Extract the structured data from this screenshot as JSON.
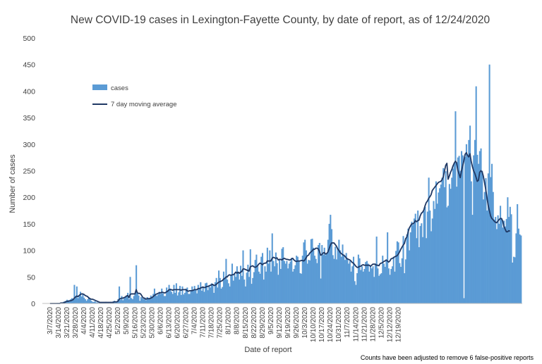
{
  "chart_data": {
    "type": "bar",
    "title": "New COVID-19 cases in Lexington-Fayette County, by date of report, as of 12/24/2020",
    "xlabel": "Date of report",
    "ylabel": "Number of cases",
    "ylim": [
      0,
      500
    ],
    "y_ticks": [
      0,
      50,
      100,
      150,
      200,
      250,
      300,
      350,
      400,
      450,
      500
    ],
    "x_tick_labels": [
      "3/7/2020",
      "3/14/2020",
      "3/21/2020",
      "3/28/2020",
      "4/4/2020",
      "4/11/2020",
      "4/18/2020",
      "4/25/2020",
      "5/2/2020",
      "5/9/2020",
      "5/16/2020",
      "5/23/2020",
      "5/30/2020",
      "6/6/2020",
      "6/13/2020",
      "6/20/2020",
      "6/27/2020",
      "7/4/2020",
      "7/11/2020",
      "7/18/2020",
      "7/25/2020",
      "8/1/2020",
      "8/8/2020",
      "8/15/2020",
      "8/22/2020",
      "8/29/2020",
      "9/5/2020",
      "9/12/2020",
      "9/19/2020",
      "9/26/2020",
      "10/3/2020",
      "10/10/2020",
      "10/17/2020",
      "10/24/2020",
      "10/31/2020",
      "11/7/2020",
      "11/14/2020",
      "11/21/2020",
      "11/28/2020",
      "12/5/2020",
      "12/12/2020",
      "12/19/2020"
    ],
    "first_date": "3/7/2020",
    "grid": false,
    "legend_position": "upper-left",
    "series": [
      {
        "name": "cases",
        "kind": "bar",
        "color": "#5b9bd5",
        "values": [
          0,
          0,
          0,
          0,
          0,
          0,
          1,
          1,
          1,
          2,
          2,
          3,
          4,
          5,
          7,
          6,
          5,
          8,
          10,
          9,
          35,
          14,
          32,
          10,
          14,
          22,
          13,
          17,
          11,
          8,
          5,
          8,
          12,
          9,
          5,
          3,
          3,
          4,
          2,
          2,
          1,
          1,
          2,
          2,
          2,
          2,
          3,
          1,
          2,
          1,
          3,
          1,
          4,
          5,
          3,
          2,
          8,
          32,
          7,
          14,
          6,
          10,
          12,
          15,
          20,
          8,
          50,
          10,
          8,
          14,
          18,
          72,
          20,
          15,
          5,
          12,
          10,
          8,
          10,
          6,
          12,
          10,
          9,
          15,
          13,
          18,
          28,
          18,
          14,
          17,
          22,
          18,
          28,
          19,
          14,
          14,
          30,
          25,
          35,
          28,
          22,
          18,
          35,
          20,
          38,
          15,
          21,
          33,
          16,
          32,
          17,
          20,
          28,
          30,
          18,
          18,
          24,
          32,
          25,
          33,
          26,
          19,
          35,
          28,
          40,
          24,
          30,
          22,
          38,
          39,
          25,
          34,
          30,
          38,
          35,
          20,
          40,
          48,
          30,
          62,
          48,
          28,
          31,
          60,
          46,
          84,
          45,
          38,
          32,
          52,
          75,
          43,
          56,
          50,
          70,
          58,
          45,
          71,
          52,
          100,
          45,
          32,
          58,
          73,
          50,
          102,
          37,
          48,
          59,
          82,
          92,
          70,
          60,
          56,
          88,
          95,
          45,
          70,
          60,
          105,
          75,
          100,
          60,
          132,
          80,
          70,
          96,
          76,
          54,
          84,
          65,
          103,
          106,
          80,
          75,
          80,
          66,
          75,
          79,
          86,
          60,
          65,
          72,
          90,
          88,
          80,
          57,
          56,
          90,
          115,
          120,
          100,
          75,
          82,
          81,
          121,
          122,
          105,
          90,
          84,
          76,
          110,
          114,
          47,
          110,
          92,
          105,
          91,
          95,
          120,
          150,
          167,
          140,
          91,
          84,
          107,
          83,
          103,
          120,
          100,
          88,
          111,
          92,
          82,
          95,
          85,
          75,
          80,
          60,
          70,
          88,
          42,
          35,
          57,
          92,
          85,
          63,
          70,
          60,
          65,
          78,
          80,
          75,
          60,
          72,
          66,
          70,
          50,
          75,
          126,
          66,
          52,
          55,
          57,
          90,
          75,
          69,
          80,
          134,
          66,
          54,
          65,
          70,
          88,
          60,
          99,
          117,
          115,
          76,
          69,
          85,
          127,
          57,
          83,
          130,
          141,
          100,
          134,
          154,
          148,
          160,
          169,
          123,
          175,
          106,
          146,
          151,
          125,
          174,
          182,
          123,
          173,
          237,
          175,
          136,
          160,
          193,
          178,
          230,
          188,
          209,
          217,
          224,
          237,
          255,
          219,
          249,
          181,
          184,
          225,
          216,
          237,
          254,
          265,
          362,
          220,
          275,
          278,
          250,
          287,
          279,
          10,
          276,
          300,
          278,
          308,
          335,
          230,
          167,
          279,
          308,
          409,
          280,
          263,
          287,
          292,
          250,
          196,
          210,
          236,
          175,
          245,
          450,
          238,
          263,
          210,
          158,
          163,
          140,
          166,
          150,
          184,
          160,
          143,
          156,
          145,
          159,
          200,
          163,
          182,
          168,
          77,
          88,
          87,
          132,
          187,
          141,
          130,
          128
        ]
      },
      {
        "name": "7 day moving average",
        "kind": "line",
        "color": "#1f3864",
        "values": [
          0,
          0,
          0,
          0,
          0,
          0,
          0,
          0,
          0,
          1,
          1,
          1,
          2,
          3,
          4,
          4,
          5,
          5,
          6,
          7,
          10,
          12,
          14,
          13,
          15,
          17,
          18,
          18,
          17,
          15,
          14,
          13,
          10,
          9,
          8,
          8,
          7,
          6,
          5,
          4,
          3,
          2,
          2,
          2,
          2,
          2,
          2,
          2,
          2,
          2,
          2,
          2,
          2,
          3,
          3,
          3,
          4,
          8,
          9,
          10,
          10,
          11,
          12,
          14,
          15,
          11,
          17,
          18,
          18,
          18,
          18,
          26,
          20,
          19,
          19,
          17,
          13,
          10,
          10,
          8,
          9,
          9,
          9,
          10,
          11,
          13,
          15,
          17,
          18,
          19,
          20,
          20,
          21,
          21,
          20,
          20,
          22,
          23,
          26,
          26,
          26,
          25,
          26,
          26,
          26,
          26,
          26,
          26,
          25,
          26,
          26,
          26,
          26,
          24,
          23,
          24,
          24,
          24,
          25,
          26,
          26,
          26,
          28,
          28,
          29,
          30,
          31,
          30,
          30,
          32,
          32,
          33,
          34,
          35,
          36,
          34,
          34,
          36,
          38,
          40,
          41,
          42,
          43,
          46,
          47,
          50,
          50,
          53,
          54,
          53,
          54,
          54,
          56,
          59,
          57,
          59,
          57,
          59,
          60,
          65,
          65,
          64,
          63,
          62,
          61,
          69,
          70,
          71,
          69,
          68,
          69,
          71,
          74,
          76,
          75,
          73,
          75,
          76,
          76,
          80,
          80,
          80,
          80,
          85,
          87,
          86,
          85,
          86,
          82,
          83,
          83,
          82,
          84,
          85,
          84,
          83,
          83,
          82,
          82,
          84,
          85,
          82,
          80,
          79,
          80,
          80,
          80,
          81,
          81,
          80,
          82,
          86,
          90,
          91,
          95,
          97,
          99,
          102,
          102,
          104,
          104,
          103,
          98,
          91,
          92,
          95,
          96,
          93,
          94,
          97,
          103,
          110,
          114,
          114,
          114,
          111,
          108,
          103,
          100,
          96,
          94,
          92,
          91,
          89,
          86,
          84,
          83,
          82,
          80,
          77,
          76,
          73,
          70,
          68,
          68,
          70,
          70,
          72,
          73,
          72,
          72,
          72,
          72,
          72,
          70,
          72,
          74,
          74,
          74,
          72,
          72,
          71,
          75,
          76,
          77,
          79,
          80,
          82,
          80,
          78,
          80,
          84,
          85,
          86,
          88,
          89,
          90,
          93,
          97,
          102,
          106,
          110,
          113,
          122,
          125,
          134,
          142,
          146,
          150,
          150,
          152,
          156,
          154,
          156,
          157,
          165,
          170,
          172,
          176,
          184,
          190,
          193,
          198,
          201,
          205,
          213,
          216,
          219,
          222,
          225,
          228,
          229,
          230,
          233,
          238,
          249,
          260,
          264,
          234,
          240,
          247,
          252,
          259,
          264,
          268,
          265,
          251,
          244,
          237,
          249,
          259,
          269,
          281,
          284,
          279,
          276,
          282,
          268,
          258,
          250,
          245,
          238,
          230,
          232,
          247,
          250,
          248,
          240,
          228,
          215,
          200,
          185,
          175,
          165,
          160,
          158,
          155,
          153,
          152,
          155,
          158,
          160,
          160,
          155,
          145,
          140,
          135,
          135,
          137,
          136
        ]
      }
    ]
  },
  "note": "Counts have been adjusted to remove 6 false-positive reports"
}
